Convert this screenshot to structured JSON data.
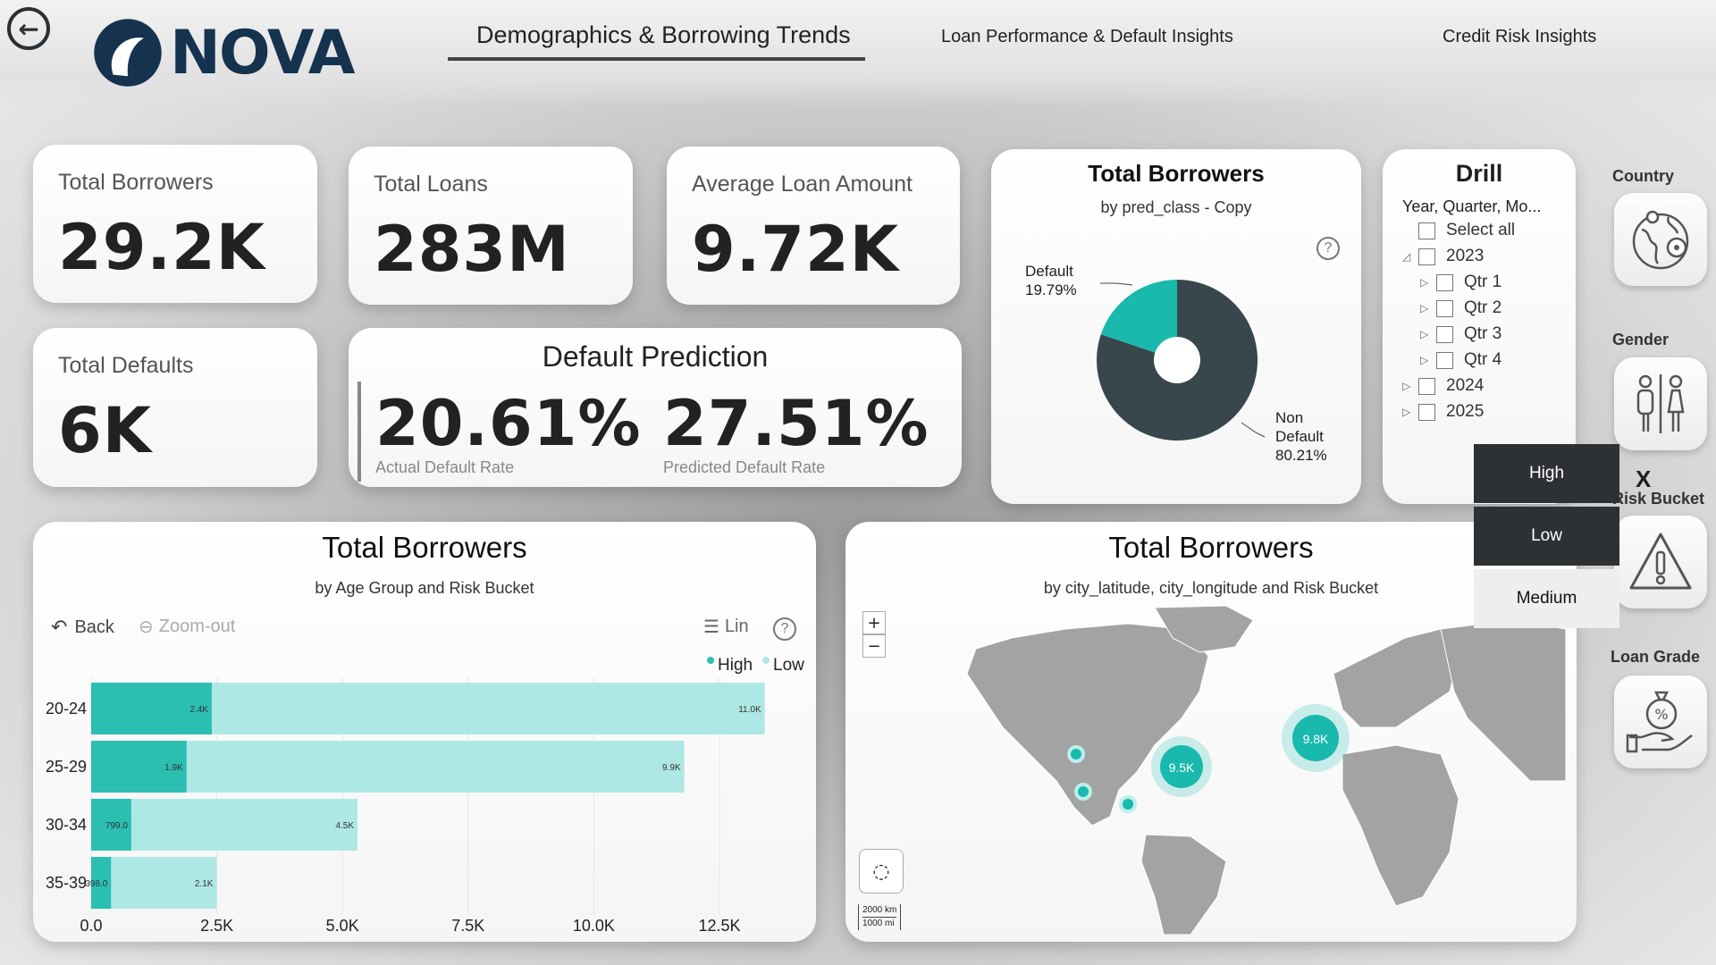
{
  "brand": {
    "name": "NOVA"
  },
  "nav": {
    "tabs": [
      {
        "label": "Demographics & Borrowing Trends"
      },
      {
        "label": "Loan Performance & Default Insights"
      },
      {
        "label": "Credit Risk Insights"
      }
    ]
  },
  "kpis": {
    "total_borrowers": {
      "label": "Total Borrowers",
      "value": "29.2K"
    },
    "total_loans": {
      "label": "Total Loans",
      "value": "283M"
    },
    "avg_loan": {
      "label": "Average Loan Amount",
      "value": "9.72K"
    },
    "total_defaults": {
      "label": "Total Defaults",
      "value": "6K"
    }
  },
  "default_prediction": {
    "title": "Default Prediction",
    "actual": {
      "value": "20.61%",
      "label": "Actual Default Rate"
    },
    "predicted": {
      "value": "27.51%",
      "label": "Predicted Default Rate"
    }
  },
  "donut": {
    "title": "Total Borrowers",
    "subtitle": "by pred_class - Copy",
    "default_label": "Default",
    "default_pct": "19.79%",
    "nondefault_label_1": "Non",
    "nondefault_label_2": "Default",
    "nondefault_pct": "80.21%",
    "colors": {
      "default": "#19b9ad",
      "non_default": "#37474c"
    }
  },
  "drill": {
    "title": "Drill",
    "subtitle": "Year, Quarter, Mo...",
    "items": [
      {
        "label": "Select all",
        "indent": 0,
        "arrow": ""
      },
      {
        "label": "2023",
        "indent": 0,
        "arrow": "◿"
      },
      {
        "label": "Qtr 1",
        "indent": 1,
        "arrow": "▷"
      },
      {
        "label": "Qtr 2",
        "indent": 1,
        "arrow": "▷"
      },
      {
        "label": "Qtr 3",
        "indent": 1,
        "arrow": "▷"
      },
      {
        "label": "Qtr 4",
        "indent": 1,
        "arrow": "▷"
      },
      {
        "label": "2024",
        "indent": 0,
        "arrow": "▷"
      },
      {
        "label": "2025",
        "indent": 0,
        "arrow": "▷"
      }
    ]
  },
  "side_filters": {
    "country": {
      "label": "Country",
      "icon": "globe-icon"
    },
    "gender": {
      "label": "Gender",
      "icon": "gender-icon"
    },
    "risk_bucket": {
      "label": "Risk Bucket",
      "icon": "warning-icon"
    },
    "loan_grade": {
      "label": "Loan Grade",
      "icon": "loan-hand-icon"
    }
  },
  "risk_bucket_menu": {
    "close": "X",
    "options": [
      {
        "label": "High",
        "style": "dark"
      },
      {
        "label": "Low",
        "style": "dark"
      },
      {
        "label": "Medium",
        "style": "light"
      }
    ]
  },
  "bar_visual": {
    "title": "Total Borrowers",
    "subtitle": "by Age Group and Risk Bucket",
    "toolbar": {
      "back": "Back",
      "zoom_out": "Zoom-out",
      "lin": "Lin"
    },
    "legend": [
      {
        "name": "High",
        "color": "#2bbfb2"
      },
      {
        "name": "Low",
        "color": "#aee8e4"
      }
    ]
  },
  "chart_data": {
    "type": "bar",
    "orientation": "horizontal",
    "stacked": true,
    "title": "Total Borrowers",
    "subtitle": "by Age Group and Risk Bucket",
    "categories": [
      "20-24",
      "25-29",
      "30-34",
      "35-39"
    ],
    "series": [
      {
        "name": "High",
        "values": [
          2400,
          1900,
          799,
          398
        ],
        "labels": [
          "2.4K",
          "1.9K",
          "799.0",
          "398.0"
        ],
        "color": "#2bbfb2"
      },
      {
        "name": "Low",
        "values": [
          11000,
          9900,
          4500,
          2100
        ],
        "labels": [
          "11.0K",
          "9.9K",
          "4.5K",
          "2.1K"
        ],
        "color": "#aee8e4"
      }
    ],
    "xlim": [
      0,
      12500
    ],
    "xticks": [
      0,
      2500,
      5000,
      7500,
      10000,
      12500
    ],
    "xtick_labels": [
      "0.0",
      "2.5K",
      "5.0K",
      "7.5K",
      "10.0K",
      "12.5K"
    ],
    "grid": true,
    "legend": "top-right"
  },
  "map_visual": {
    "title": "Total Borrowers",
    "subtitle": "by city_latitude, city_longitude and Risk Bucket",
    "zoom_in": "+",
    "zoom_out": "−",
    "scale_km": "2000 km",
    "scale_mi": "1000 mi",
    "bubbles": [
      {
        "label": "9.8K",
        "region": "europe"
      },
      {
        "label": "9.5K",
        "region": "us-east"
      },
      {
        "label": "",
        "region": "us-west-1"
      },
      {
        "label": "",
        "region": "us-west-2"
      },
      {
        "label": "",
        "region": "us-south"
      }
    ],
    "colors": {
      "land": "#a3a3a3",
      "bubble": "#19b9ad"
    }
  }
}
